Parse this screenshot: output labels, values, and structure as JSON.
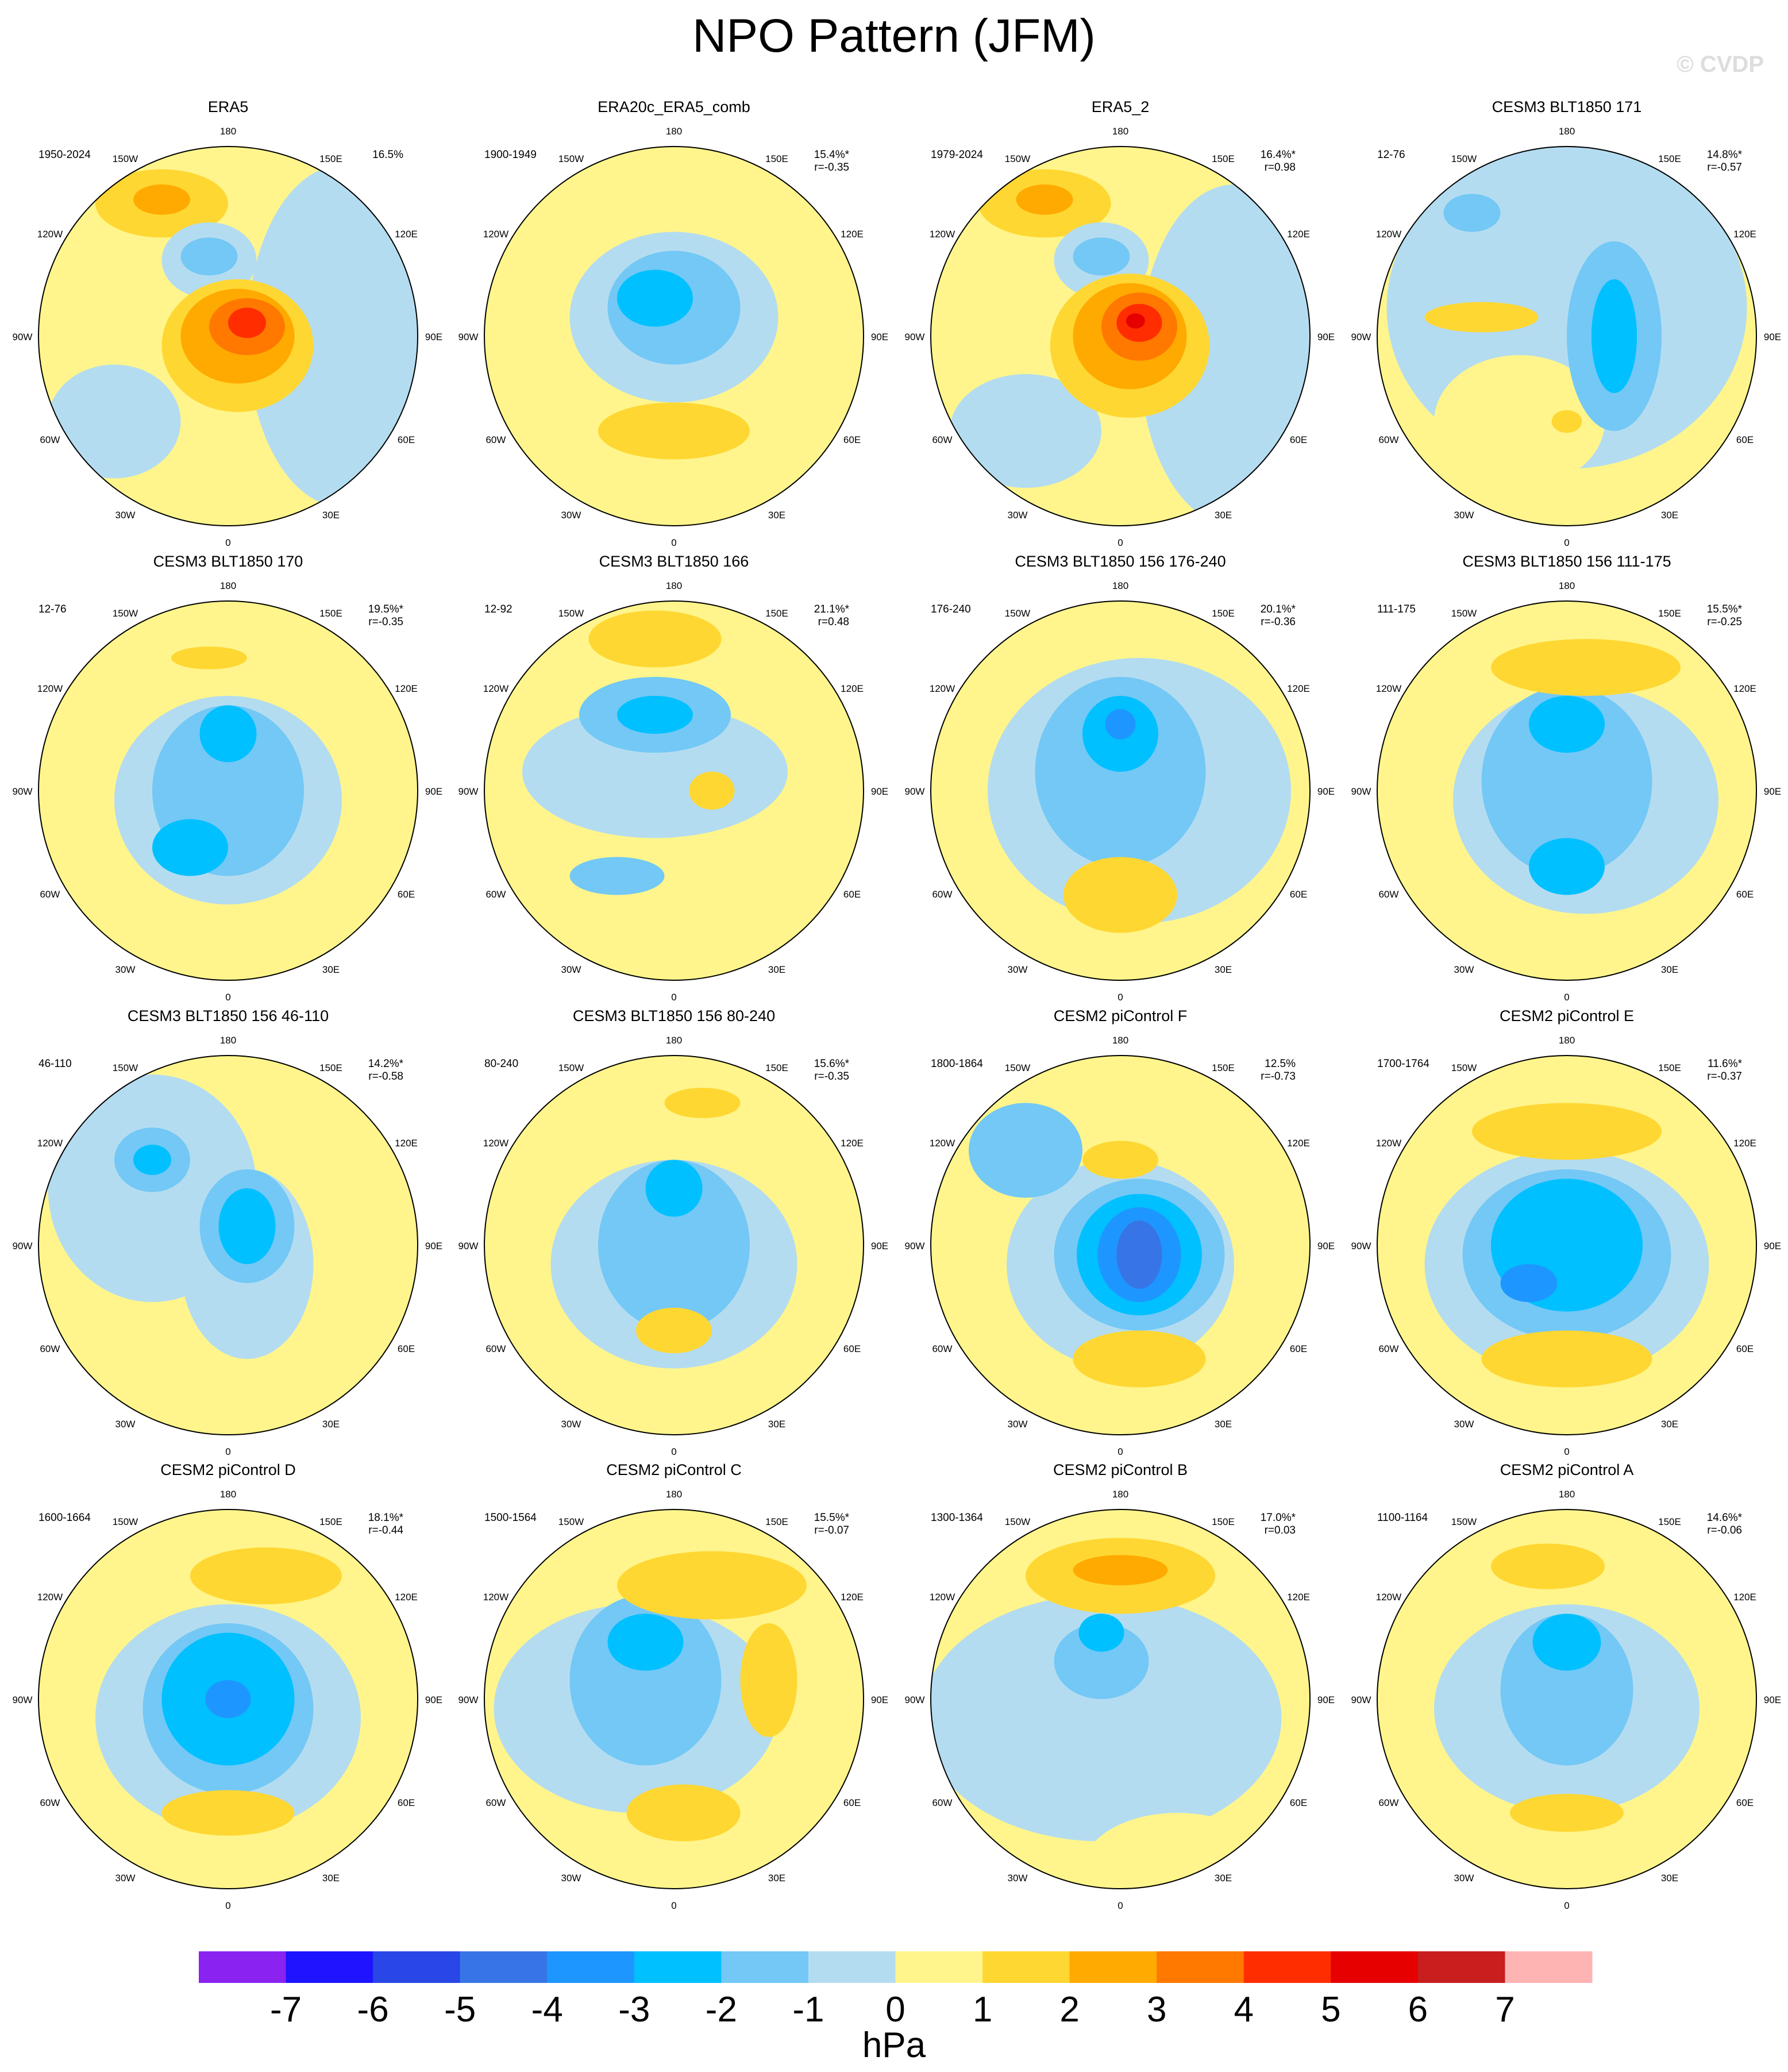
{
  "title": "NPO Pattern (JFM)",
  "watermark": "© CVDP",
  "longitude_labels": [
    "180",
    "150E",
    "120E",
    "90E",
    "60E",
    "30E",
    "0",
    "30W",
    "60W",
    "90W",
    "120W",
    "150W"
  ],
  "panels": [
    {
      "title": "ERA5",
      "period": "1950-2024",
      "percent": "16.5%"
    },
    {
      "title": "ERA20c_ERA5_comb",
      "period": "1900-1949",
      "percent": "15.4%*",
      "r": "r=-0.35"
    },
    {
      "title": "ERA5_2",
      "period": "1979-2024",
      "percent": "16.4%*",
      "r": "r=0.98"
    },
    {
      "title": "CESM3 BLT1850 171",
      "period": "12-76",
      "percent": "14.8%*",
      "r": "r=-0.57"
    },
    {
      "title": "CESM3 BLT1850 170",
      "period": "12-76",
      "percent": "19.5%*",
      "r": "r=-0.35"
    },
    {
      "title": "CESM3 BLT1850 166",
      "period": "12-92",
      "percent": "21.1%*",
      "r": "r=0.48"
    },
    {
      "title": "CESM3 BLT1850 156 176-240",
      "period": "176-240",
      "percent": "20.1%*",
      "r": "r=-0.36"
    },
    {
      "title": "CESM3 BLT1850 156 111-175",
      "period": "111-175",
      "percent": "15.5%*",
      "r": "r=-0.25"
    },
    {
      "title": "CESM3 BLT1850 156 46-110",
      "period": "46-110",
      "percent": "14.2%*",
      "r": "r=-0.58"
    },
    {
      "title": "CESM3 BLT1850 156 80-240",
      "period": "80-240",
      "percent": "15.6%*",
      "r": "r=-0.35"
    },
    {
      "title": "CESM2 piControl F",
      "period": "1800-1864",
      "percent": "12.5%",
      "r": "r=-0.73"
    },
    {
      "title": "CESM2 piControl E",
      "period": "1700-1764",
      "percent": "11.6%*",
      "r": "r=-0.37"
    },
    {
      "title": "CESM2 piControl D",
      "period": "1600-1664",
      "percent": "18.1%*",
      "r": "r=-0.44"
    },
    {
      "title": "CESM2 piControl C",
      "period": "1500-1564",
      "percent": "15.5%*",
      "r": "r=-0.07"
    },
    {
      "title": "CESM2 piControl B",
      "period": "1300-1364",
      "percent": "17.0%*",
      "r": "r=0.03"
    },
    {
      "title": "CESM2 piControl A",
      "period": "1100-1164",
      "percent": "14.6%*",
      "r": "r=-0.06"
    }
  ],
  "colorbar": {
    "unit": "hPa",
    "ticks": [
      -7,
      -6,
      -5,
      -4,
      -3,
      -2,
      -1,
      0,
      1,
      2,
      3,
      4,
      5,
      6,
      7
    ],
    "colors": [
      "#8a22f0",
      "#1e14ff",
      "#2847e6",
      "#3775e6",
      "#1e96ff",
      "#00c0ff",
      "#73c8f5",
      "#b4dcf0",
      "#fff58c",
      "#ffd732",
      "#ffaa00",
      "#ff7800",
      "#ff2d00",
      "#e60000",
      "#c81e1e",
      "#ffb4b4"
    ]
  }
}
